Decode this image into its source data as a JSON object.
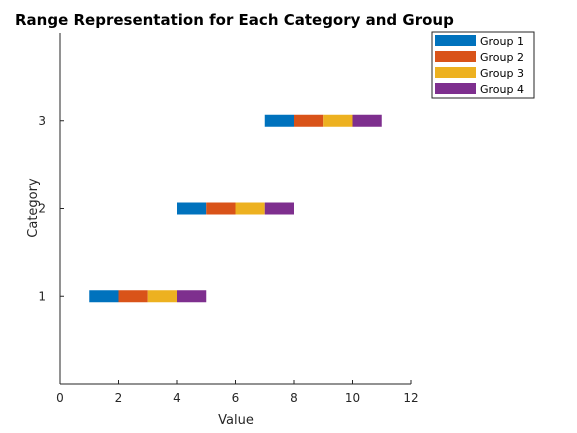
{
  "chart_data": {
    "type": "bar",
    "orientation": "horizontal-stacked-range",
    "title": "Range Representation for Each Category and Group",
    "xlabel": "Value",
    "ylabel": "Category",
    "xlim": [
      0,
      12
    ],
    "ylim": [
      0,
      4
    ],
    "xticks": [
      0,
      2,
      4,
      6,
      8,
      10,
      12
    ],
    "yticks": [
      1,
      2,
      3
    ],
    "grid": false,
    "legend_position": "top-right",
    "categories": [
      "1",
      "2",
      "3"
    ],
    "series": [
      {
        "name": "Group 1",
        "color": "#0072bd",
        "ranges": [
          [
            1,
            2
          ],
          [
            4,
            5
          ],
          [
            7,
            8
          ]
        ]
      },
      {
        "name": "Group 2",
        "color": "#d95319",
        "ranges": [
          [
            2,
            3
          ],
          [
            5,
            6
          ],
          [
            8,
            9
          ]
        ]
      },
      {
        "name": "Group 3",
        "color": "#edb120",
        "ranges": [
          [
            3,
            4
          ],
          [
            6,
            7
          ],
          [
            9,
            10
          ]
        ]
      },
      {
        "name": "Group 4",
        "color": "#7e2f8e",
        "ranges": [
          [
            4,
            5
          ],
          [
            7,
            8
          ],
          [
            10,
            11
          ]
        ]
      }
    ]
  }
}
